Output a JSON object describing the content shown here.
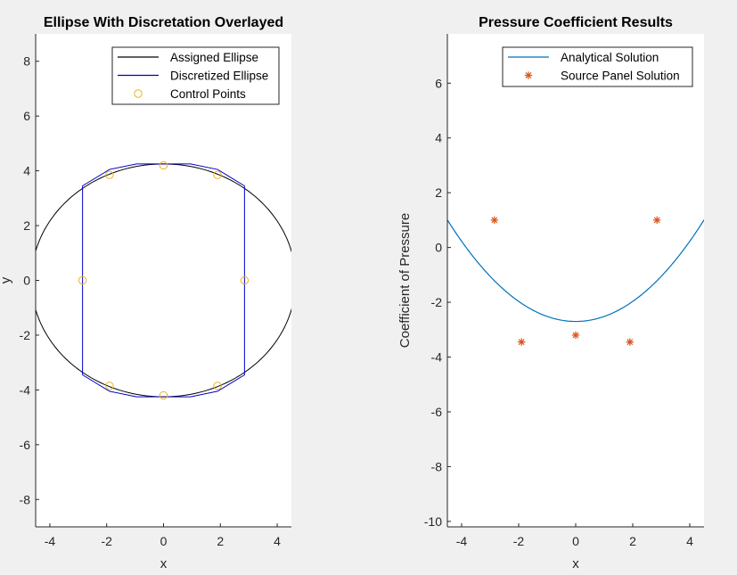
{
  "chart_data": [
    {
      "type": "line",
      "title": "Ellipse With Discretation Overlayed",
      "xlabel": "x",
      "ylabel": "y",
      "xlim": [
        -4.5,
        4.5
      ],
      "ylim": [
        -9,
        9
      ],
      "xticks": [
        -4,
        -2,
        0,
        2,
        4
      ],
      "yticks": [
        -8,
        -6,
        -4,
        -2,
        0,
        2,
        4,
        6,
        8
      ],
      "grid": false,
      "legend_position": "top-right",
      "ellipse": {
        "a": 4.65,
        "b": 4.25
      },
      "series": [
        {
          "name": "Assigned Ellipse",
          "style": "line",
          "color": "#000000"
        },
        {
          "name": "Discretized Ellipse",
          "style": "line",
          "color": "#0000c8",
          "x": [
            2.85,
            1.9,
            0.95,
            -0.95,
            -1.9,
            -2.85,
            -2.85,
            -1.9,
            -0.95,
            0.95,
            1.9,
            2.85,
            2.85
          ],
          "y": [
            3.45,
            4.05,
            4.25,
            4.25,
            4.05,
            3.45,
            -3.45,
            -4.05,
            -4.25,
            -4.25,
            -4.05,
            -3.45,
            3.45
          ]
        },
        {
          "name": "Control Points",
          "style": "circle",
          "color": "#edb120",
          "x": [
            2.85,
            1.9,
            0,
            -1.9,
            -2.85,
            -1.9,
            0,
            1.9
          ],
          "y": [
            0,
            3.85,
            4.2,
            3.85,
            0,
            -3.85,
            -4.2,
            -3.85
          ]
        }
      ]
    },
    {
      "type": "line",
      "title": "Pressure Coefficient Results",
      "xlabel": "x",
      "ylabel": "Coefficient of Pressure",
      "xlim": [
        -4.5,
        4.5
      ],
      "ylim": [
        -10.2,
        7.8
      ],
      "xticks": [
        -4,
        -2,
        0,
        2,
        4
      ],
      "yticks": [
        -10,
        -8,
        -6,
        -4,
        -2,
        0,
        2,
        4,
        6
      ],
      "grid": false,
      "legend_position": "top-right",
      "series": [
        {
          "name": "Analytical Solution",
          "style": "line",
          "color": "#0072bd",
          "formula": {
            "c0": -2.7,
            "c2": 0.183
          }
        },
        {
          "name": "Source Panel Solution",
          "style": "asterisk",
          "color": "#d95319",
          "x": [
            -2.85,
            -1.9,
            0,
            1.9,
            2.85
          ],
          "y": [
            1.0,
            -3.45,
            -3.2,
            -3.45,
            1.0
          ]
        }
      ]
    }
  ]
}
